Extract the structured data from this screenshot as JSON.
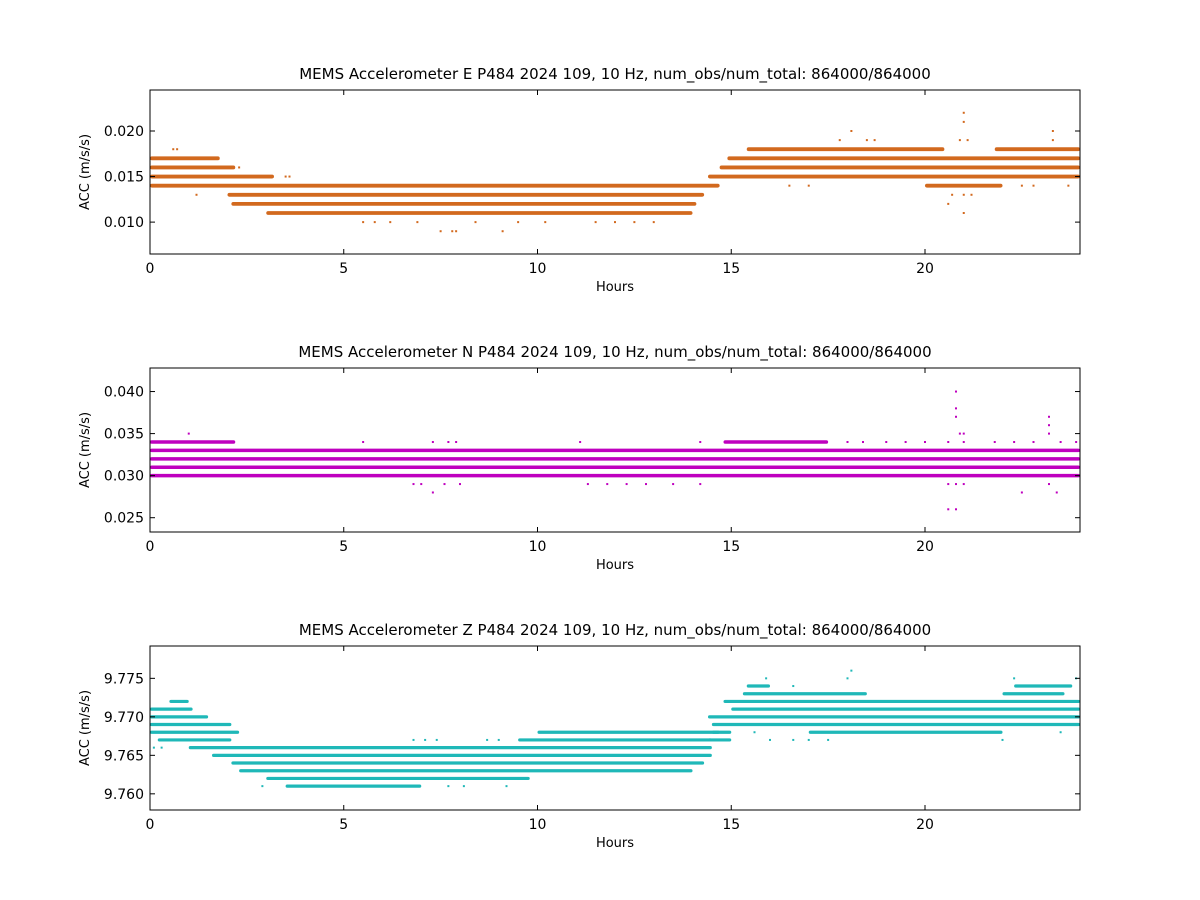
{
  "chart_data": [
    {
      "type": "scatter",
      "title": "MEMS Accelerometer E P484 2024 109, 10 Hz, num_obs/num_total: 864000/864000",
      "xlabel": "Hours",
      "ylabel": "ACC (m/s/s)",
      "xlim": [
        0,
        24
      ],
      "ylim": [
        0.0065,
        0.0245
      ],
      "xticks": [
        0,
        5,
        10,
        15,
        20
      ],
      "xtick_labels": [
        "0",
        "5",
        "10",
        "15",
        "20"
      ],
      "yticks": [
        0.01,
        0.015,
        0.02
      ],
      "ytick_labels": [
        "0.010",
        "0.015",
        "0.020"
      ],
      "color": "#d2691e",
      "grid": false,
      "legend": "none",
      "series": [
        {
          "bands": [
            {
              "y": 0.017,
              "x": [
                0.0,
                1.8
              ]
            },
            {
              "y": 0.016,
              "x": [
                0.0,
                2.2
              ]
            },
            {
              "y": 0.015,
              "x": [
                0.0,
                3.2
              ]
            },
            {
              "y": 0.014,
              "x": [
                0.0,
                14.7
              ]
            },
            {
              "y": 0.013,
              "x": [
                2.0,
                14.3
              ]
            },
            {
              "y": 0.012,
              "x": [
                2.1,
                14.1
              ]
            },
            {
              "y": 0.011,
              "x": [
                3.0,
                14.0
              ]
            },
            {
              "y": 0.015,
              "x": [
                14.4,
                24.0
              ]
            },
            {
              "y": 0.016,
              "x": [
                14.7,
                24.0
              ]
            },
            {
              "y": 0.017,
              "x": [
                14.9,
                24.0
              ]
            },
            {
              "y": 0.018,
              "x": [
                15.4,
                20.5
              ]
            },
            {
              "y": 0.018,
              "x": [
                21.8,
                24.0
              ]
            },
            {
              "y": 0.014,
              "x": [
                20.0,
                22.0
              ]
            }
          ],
          "scatter": [
            [
              0.6,
              0.018
            ],
            [
              0.7,
              0.018
            ],
            [
              1.2,
              0.013
            ],
            [
              2.3,
              0.016
            ],
            [
              3.5,
              0.015
            ],
            [
              3.6,
              0.015
            ],
            [
              5.5,
              0.01
            ],
            [
              5.8,
              0.01
            ],
            [
              6.2,
              0.01
            ],
            [
              6.9,
              0.01
            ],
            [
              7.5,
              0.009
            ],
            [
              7.8,
              0.009
            ],
            [
              7.9,
              0.009
            ],
            [
              8.4,
              0.01
            ],
            [
              9.1,
              0.009
            ],
            [
              9.5,
              0.01
            ],
            [
              10.2,
              0.01
            ],
            [
              11.5,
              0.01
            ],
            [
              12.0,
              0.01
            ],
            [
              12.5,
              0.01
            ],
            [
              13.0,
              0.01
            ],
            [
              8.3,
              0.014
            ],
            [
              8.8,
              0.014
            ],
            [
              9.3,
              0.014
            ],
            [
              16.5,
              0.014
            ],
            [
              17.0,
              0.014
            ],
            [
              17.8,
              0.019
            ],
            [
              18.1,
              0.02
            ],
            [
              18.5,
              0.019
            ],
            [
              18.7,
              0.019
            ],
            [
              20.6,
              0.012
            ],
            [
              20.7,
              0.013
            ],
            [
              20.9,
              0.019
            ],
            [
              21.0,
              0.022
            ],
            [
              21.0,
              0.021
            ],
            [
              21.1,
              0.019
            ],
            [
              21.0,
              0.013
            ],
            [
              21.2,
              0.013
            ],
            [
              21.0,
              0.011
            ],
            [
              22.5,
              0.014
            ],
            [
              22.8,
              0.014
            ],
            [
              23.3,
              0.02
            ],
            [
              23.3,
              0.019
            ],
            [
              23.7,
              0.014
            ]
          ]
        }
      ]
    },
    {
      "type": "scatter",
      "title": "MEMS Accelerometer N P484 2024 109, 10 Hz, num_obs/num_total: 864000/864000",
      "xlabel": "Hours",
      "ylabel": "ACC (m/s/s)",
      "xlim": [
        0,
        24
      ],
      "ylim": [
        0.0233,
        0.0428
      ],
      "xticks": [
        0,
        5,
        10,
        15,
        20
      ],
      "xtick_labels": [
        "0",
        "5",
        "10",
        "15",
        "20"
      ],
      "yticks": [
        0.025,
        0.03,
        0.035,
        0.04
      ],
      "ytick_labels": [
        "0.025",
        "0.030",
        "0.035",
        "0.040"
      ],
      "color": "#bf00bf",
      "grid": false,
      "legend": "none",
      "series": [
        {
          "bands": [
            {
              "y": 0.033,
              "x": [
                0.0,
                24.0
              ]
            },
            {
              "y": 0.032,
              "x": [
                0.0,
                24.0
              ]
            },
            {
              "y": 0.031,
              "x": [
                0.0,
                24.0
              ]
            },
            {
              "y": 0.03,
              "x": [
                0.0,
                24.0
              ]
            },
            {
              "y": 0.034,
              "x": [
                0.0,
                2.2
              ]
            },
            {
              "y": 0.034,
              "x": [
                14.8,
                17.5
              ]
            }
          ],
          "scatter": [
            [
              1.0,
              0.035
            ],
            [
              5.5,
              0.034
            ],
            [
              7.3,
              0.034
            ],
            [
              7.7,
              0.034
            ],
            [
              7.9,
              0.034
            ],
            [
              11.1,
              0.034
            ],
            [
              14.2,
              0.034
            ],
            [
              18.0,
              0.034
            ],
            [
              18.4,
              0.034
            ],
            [
              19.0,
              0.034
            ],
            [
              19.5,
              0.034
            ],
            [
              20.0,
              0.034
            ],
            [
              20.6,
              0.034
            ],
            [
              21.0,
              0.034
            ],
            [
              21.8,
              0.034
            ],
            [
              22.3,
              0.034
            ],
            [
              22.8,
              0.034
            ],
            [
              23.5,
              0.034
            ],
            [
              23.9,
              0.034
            ],
            [
              6.8,
              0.029
            ],
            [
              7.0,
              0.029
            ],
            [
              7.3,
              0.028
            ],
            [
              7.6,
              0.029
            ],
            [
              8.0,
              0.029
            ],
            [
              11.3,
              0.029
            ],
            [
              11.8,
              0.029
            ],
            [
              12.3,
              0.029
            ],
            [
              12.8,
              0.029
            ],
            [
              13.5,
              0.029
            ],
            [
              14.2,
              0.029
            ],
            [
              20.6,
              0.026
            ],
            [
              20.8,
              0.026
            ],
            [
              20.6,
              0.029
            ],
            [
              20.8,
              0.029
            ],
            [
              21.0,
              0.029
            ],
            [
              20.8,
              0.038
            ],
            [
              20.8,
              0.04
            ],
            [
              20.9,
              0.035
            ],
            [
              20.8,
              0.037
            ],
            [
              21.0,
              0.035
            ],
            [
              23.2,
              0.037
            ],
            [
              23.2,
              0.036
            ],
            [
              23.2,
              0.035
            ],
            [
              23.2,
              0.029
            ],
            [
              23.4,
              0.028
            ],
            [
              22.5,
              0.028
            ]
          ]
        }
      ]
    },
    {
      "type": "scatter",
      "title": "MEMS Accelerometer Z P484 2024 109, 10 Hz, num_obs/num_total: 864000/864000",
      "xlabel": "Hours",
      "ylabel": "ACC (m/s/s)",
      "xlim": [
        0,
        24
      ],
      "ylim": [
        9.7579,
        9.7792
      ],
      "xticks": [
        0,
        5,
        10,
        15,
        20
      ],
      "xtick_labels": [
        "0",
        "5",
        "10",
        "15",
        "20"
      ],
      "yticks": [
        9.76,
        9.765,
        9.77,
        9.775
      ],
      "ytick_labels": [
        "9.760",
        "9.765",
        "9.770",
        "9.775"
      ],
      "color": "#1fb8b8",
      "grid": false,
      "legend": "none",
      "series": [
        {
          "bands": [
            {
              "y": 9.772,
              "x": [
                0.5,
                1.0
              ]
            },
            {
              "y": 9.771,
              "x": [
                0.0,
                1.1
              ]
            },
            {
              "y": 9.77,
              "x": [
                0.0,
                1.5
              ]
            },
            {
              "y": 9.769,
              "x": [
                0.0,
                2.1
              ]
            },
            {
              "y": 9.768,
              "x": [
                0.0,
                2.3
              ]
            },
            {
              "y": 9.767,
              "x": [
                0.2,
                2.1
              ]
            },
            {
              "y": 9.766,
              "x": [
                1.0,
                14.5
              ]
            },
            {
              "y": 9.765,
              "x": [
                1.6,
                14.5
              ]
            },
            {
              "y": 9.764,
              "x": [
                2.1,
                14.3
              ]
            },
            {
              "y": 9.763,
              "x": [
                2.3,
                14.0
              ]
            },
            {
              "y": 9.762,
              "x": [
                3.0,
                9.8
              ]
            },
            {
              "y": 9.761,
              "x": [
                3.5,
                7.0
              ]
            },
            {
              "y": 9.767,
              "x": [
                9.5,
                14.5
              ]
            },
            {
              "y": 9.768,
              "x": [
                10.0,
                14.7
              ]
            },
            {
              "y": 9.767,
              "x": [
                14.4,
                15.0
              ]
            },
            {
              "y": 9.768,
              "x": [
                14.5,
                15.0
              ]
            },
            {
              "y": 9.769,
              "x": [
                14.5,
                24.0
              ]
            },
            {
              "y": 9.77,
              "x": [
                14.4,
                24.0
              ]
            },
            {
              "y": 9.771,
              "x": [
                15.0,
                24.0
              ]
            },
            {
              "y": 9.772,
              "x": [
                14.8,
                24.0
              ]
            },
            {
              "y": 9.773,
              "x": [
                15.3,
                18.5
              ]
            },
            {
              "y": 9.773,
              "x": [
                22.0,
                23.6
              ]
            },
            {
              "y": 9.774,
              "x": [
                15.4,
                16.0
              ]
            },
            {
              "y": 9.774,
              "x": [
                22.3,
                23.8
              ]
            },
            {
              "y": 9.768,
              "x": [
                17.0,
                22.0
              ]
            }
          ],
          "scatter": [
            [
              0.1,
              9.766
            ],
            [
              0.3,
              9.766
            ],
            [
              0.6,
              9.767
            ],
            [
              6.8,
              9.767
            ],
            [
              7.1,
              9.767
            ],
            [
              7.4,
              9.767
            ],
            [
              8.7,
              9.767
            ],
            [
              9.0,
              9.767
            ],
            [
              2.9,
              9.761
            ],
            [
              6.5,
              9.761
            ],
            [
              7.7,
              9.761
            ],
            [
              8.1,
              9.761
            ],
            [
              9.2,
              9.761
            ],
            [
              15.9,
              9.775
            ],
            [
              16.6,
              9.774
            ],
            [
              16.7,
              9.772
            ],
            [
              18.1,
              9.776
            ],
            [
              18.0,
              9.775
            ],
            [
              15.6,
              9.768
            ],
            [
              16.0,
              9.767
            ],
            [
              16.6,
              9.767
            ],
            [
              17.0,
              9.767
            ],
            [
              17.5,
              9.767
            ],
            [
              22.3,
              9.775
            ],
            [
              22.0,
              9.767
            ],
            [
              23.5,
              9.768
            ],
            [
              23.9,
              9.775
            ]
          ]
        }
      ]
    }
  ]
}
